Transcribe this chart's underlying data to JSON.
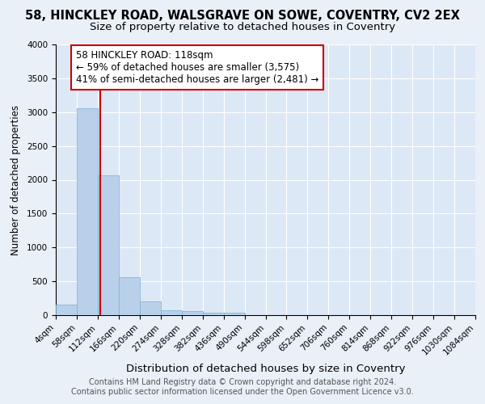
{
  "title_line1": "58, HINCKLEY ROAD, WALSGRAVE ON SOWE, COVENTRY, CV2 2EX",
  "title_line2": "Size of property relative to detached houses in Coventry",
  "xlabel": "Distribution of detached houses by size in Coventry",
  "ylabel": "Number of detached properties",
  "footnote1": "Contains HM Land Registry data © Crown copyright and database right 2024.",
  "footnote2": "Contains public sector information licensed under the Open Government Licence v3.0.",
  "property_size": 118,
  "annotation_line1": "58 HINCKLEY ROAD: 118sqm",
  "annotation_line2": "← 59% of detached houses are smaller (3,575)",
  "annotation_line3": "41% of semi-detached houses are larger (2,481) →",
  "bar_bins": [
    4,
    58,
    112,
    166,
    220,
    274,
    328,
    382,
    436,
    490,
    544,
    598,
    652,
    706,
    760,
    814,
    868,
    922,
    976,
    1030,
    1084
  ],
  "bar_values": [
    150,
    3060,
    2060,
    565,
    205,
    75,
    55,
    40,
    35,
    0,
    0,
    0,
    0,
    0,
    0,
    0,
    0,
    0,
    0,
    0
  ],
  "bar_color": "#b8d0ea",
  "bar_edge_color": "#7aaed4",
  "vline_x": 118,
  "vline_color": "#cc0000",
  "annotation_box_color": "#cc0000",
  "background_color": "#eaf0f8",
  "plot_bg_color": "#dce8f5",
  "ylim": [
    0,
    4000
  ],
  "yticks": [
    0,
    500,
    1000,
    1500,
    2000,
    2500,
    3000,
    3500,
    4000
  ],
  "grid_color": "#ffffff",
  "title1_fontsize": 10.5,
  "title2_fontsize": 9.5,
  "xlabel_fontsize": 9.5,
  "ylabel_fontsize": 8.5,
  "footnote_fontsize": 7,
  "annotation_fontsize": 8.5,
  "tick_fontsize": 7.5
}
